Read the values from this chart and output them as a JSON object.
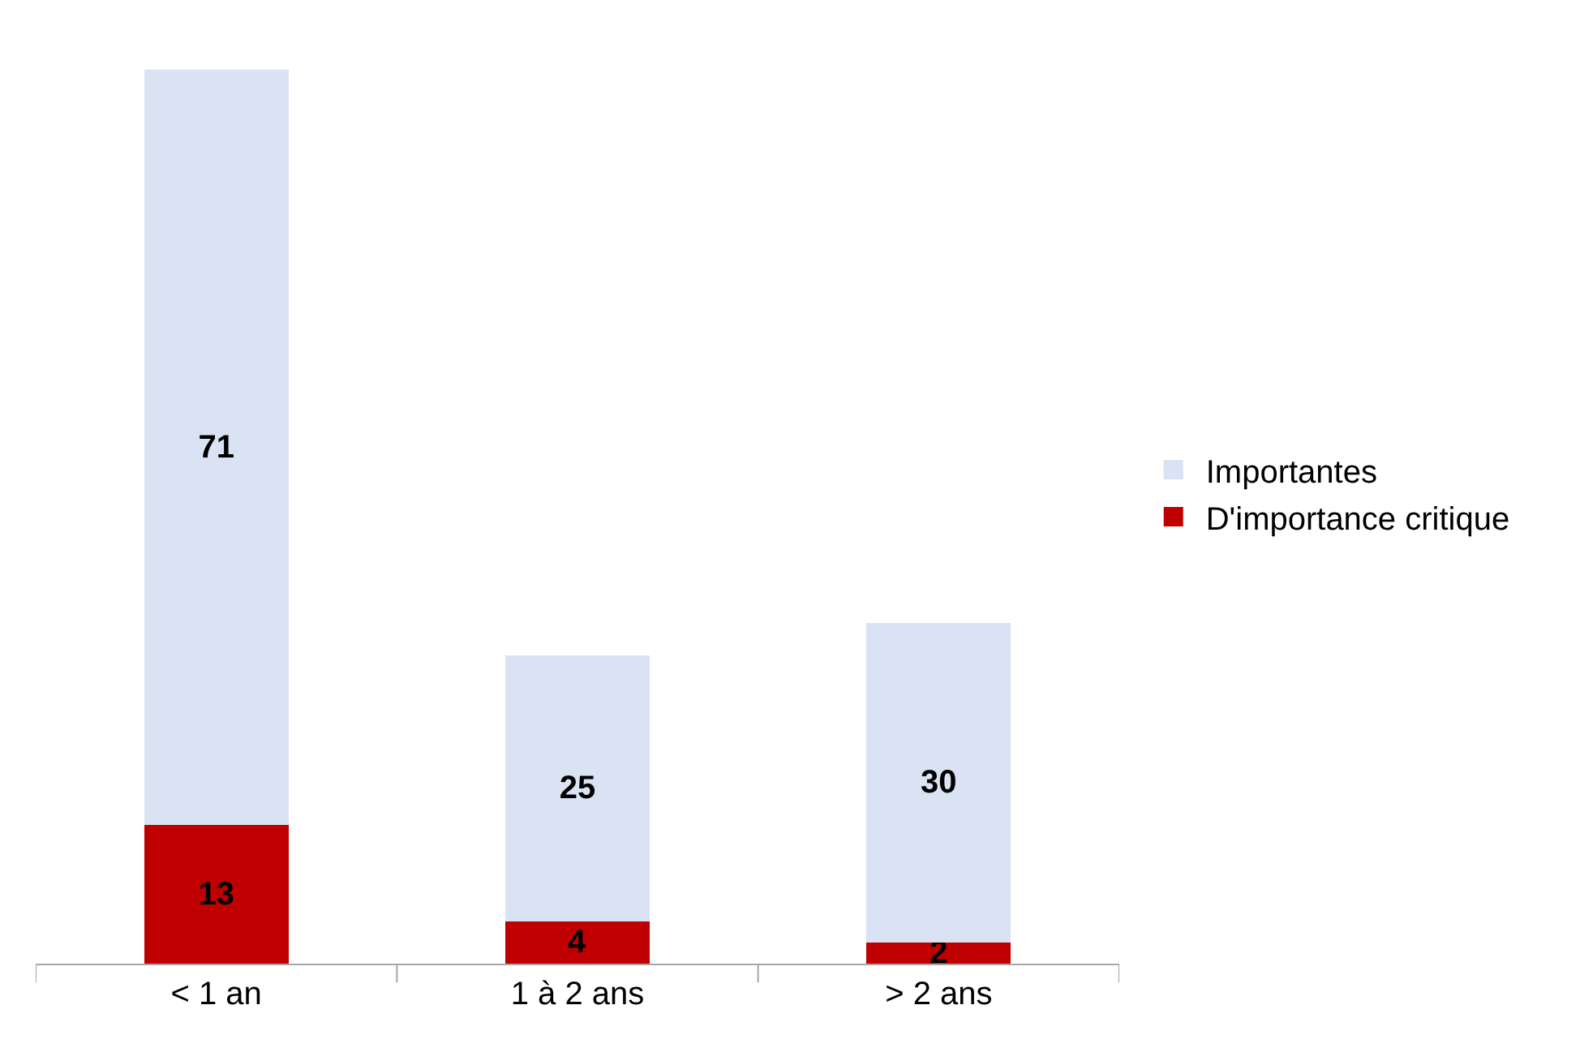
{
  "chart_data": {
    "type": "bar",
    "stacked": true,
    "data_labels": true,
    "legend": "right",
    "categories": [
      "< 1 an",
      "1 à 2 ans",
      "> 2 ans"
    ],
    "series": [
      {
        "name": "D'importance critique",
        "color": "#c00000",
        "values": [
          13,
          4,
          2
        ]
      },
      {
        "name": "Importantes",
        "color": "#dae3f3",
        "values": [
          71,
          25,
          30
        ]
      }
    ]
  }
}
